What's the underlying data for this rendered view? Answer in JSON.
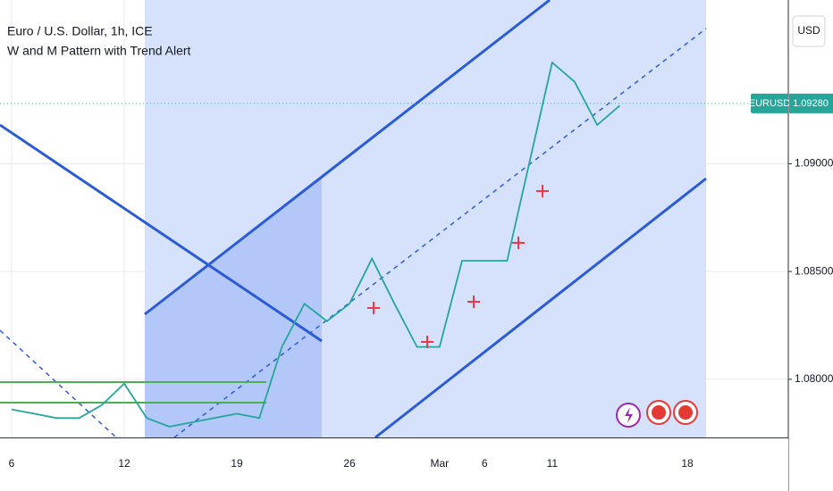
{
  "chart_data": {
    "type": "line",
    "title": "Euro / U.S. Dollar, 1h, ICE",
    "subtitle": "W and M Pattern with Trend Alert",
    "currency": "USD",
    "symbol": "EURUSD",
    "last_price": {
      "value": 1.0928,
      "label": "1.09280"
    },
    "categories": [
      "6",
      null,
      null,
      null,
      null,
      "12",
      null,
      null,
      null,
      null,
      "19",
      null,
      null,
      null,
      null,
      "26",
      null,
      null,
      null,
      "Mar",
      null,
      "6",
      null,
      null,
      "11",
      null,
      null,
      null,
      null,
      null,
      "18"
    ],
    "values": [
      1.0786,
      1.0784,
      1.0782,
      1.0782,
      1.0788,
      1.0798,
      1.0782,
      1.0778,
      1.078,
      1.0782,
      1.0784,
      1.0782,
      1.0815,
      1.0835,
      1.0827,
      1.0835,
      1.0856,
      1.0835,
      1.0815,
      1.0815,
      1.0855,
      1.0855,
      1.0855,
      1.0901,
      1.0947,
      1.0938,
      1.0918,
      1.0927,
      null,
      null,
      null
    ],
    "color": "#26a69a",
    "ylim": [
      1.0773,
      1.0976
    ],
    "yticks": [
      {
        "value": 1.08,
        "label": "1.08000"
      },
      {
        "value": 1.085,
        "label": "1.08500"
      },
      {
        "value": 1.09,
        "label": "1.09000"
      }
    ],
    "grid": true
  }
}
